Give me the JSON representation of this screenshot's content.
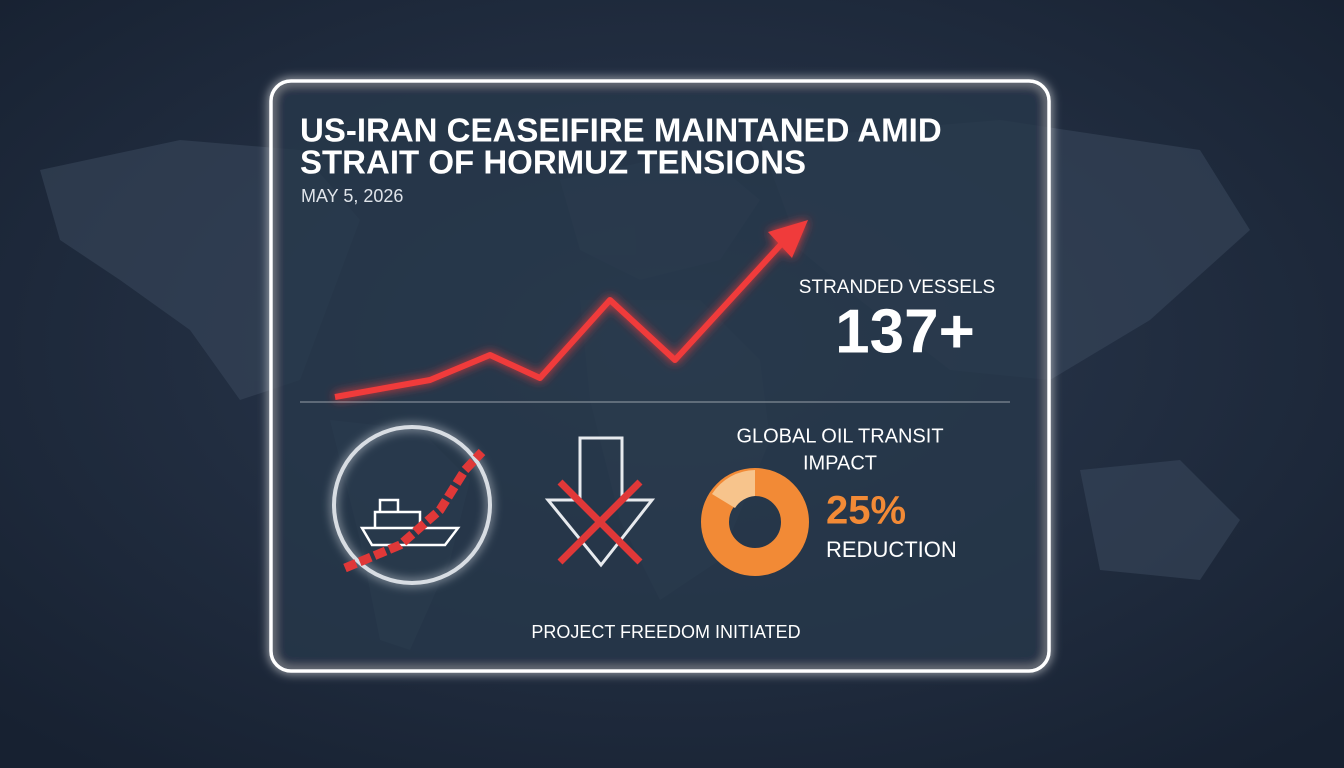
{
  "header": {
    "title_lines": [
      "US-IRAN CEASEIFIRE MAINTANED AMID",
      "STRAIT OF HORMUZ TENSIONS"
    ],
    "date": "MAY 5, 2026"
  },
  "stats": {
    "vessels": {
      "label": "STRANDED VESSELS",
      "value": "137+"
    },
    "oil": {
      "label_lines": [
        "GLOBAL OIL TRANSIT",
        "IMPACT"
      ],
      "value": "25%",
      "caption": "REDUCTION"
    }
  },
  "footer": "PROJECT FREEDOM INITIATED"
}
